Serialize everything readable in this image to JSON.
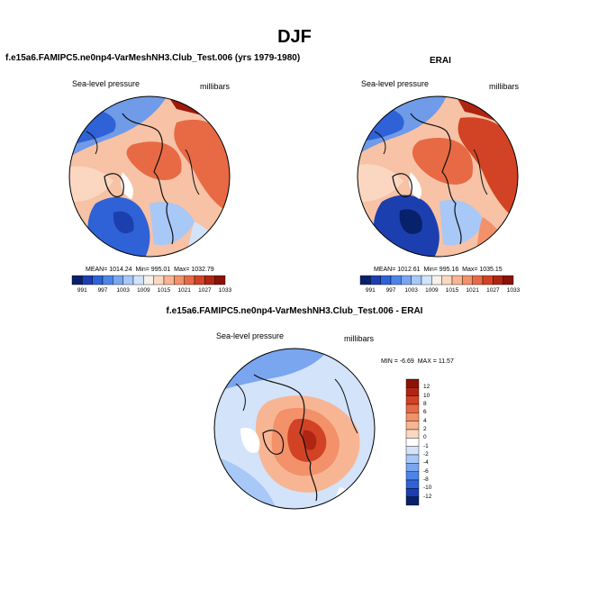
{
  "page": {
    "title": "DJF"
  },
  "panels": [
    {
      "title": "f.e15a6.FAMIPC5.ne0np4-VarMeshNH3.Club_Test.006 (yrs 1979-1980)",
      "left_label": "Sea-level pressure",
      "right_label": "millibars",
      "stats": {
        "mean_label": "MEAN=",
        "mean": "1014.24",
        "min_label": "Min=",
        "min": "995.01",
        "max_label": "Max=",
        "max": "1032.79"
      },
      "colorbar": {
        "labels": [
          "991",
          "997",
          "1003",
          "1009",
          "1015",
          "1021",
          "1027",
          "1033"
        ],
        "colors": [
          "#08216b",
          "#1c3fb0",
          "#2f62d6",
          "#4d84e8",
          "#7aa6f0",
          "#a8c8f7",
          "#d2e3fa",
          "#f4f1ec",
          "#fbd7c2",
          "#f8b593",
          "#f2916a",
          "#e86a45",
          "#d24325",
          "#b02512",
          "#8a1208"
        ]
      }
    },
    {
      "title": "ERAI",
      "left_label": "Sea-level pressure",
      "right_label": "millibars",
      "stats": {
        "mean_label": "MEAN=",
        "mean": "1012.61",
        "min_label": "Min=",
        "min": "995.16",
        "max_label": "Max=",
        "max": "1035.15"
      },
      "colorbar": {
        "labels": [
          "991",
          "997",
          "1003",
          "1009",
          "1015",
          "1021",
          "1027",
          "1033"
        ],
        "colors": [
          "#08216b",
          "#1c3fb0",
          "#2f62d6",
          "#4d84e8",
          "#7aa6f0",
          "#a8c8f7",
          "#d2e3fa",
          "#f4f1ec",
          "#fbd7c2",
          "#f8b593",
          "#f2916a",
          "#e86a45",
          "#d24325",
          "#b02512",
          "#8a1208"
        ]
      }
    },
    {
      "title": "f.e15a6.FAMIPC5.ne0np4-VarMeshNH3.Club_Test.006 - ERAI",
      "left_label": "Sea-level pressure",
      "right_label": "millibars",
      "stats": {
        "min_label": "MIN =",
        "min": "-6.69",
        "max_label": "MAX =",
        "max": "11.57"
      },
      "colorbar": {
        "labels": [
          "12",
          "10",
          "8",
          "6",
          "4",
          "2",
          "0",
          "-1",
          "-2",
          "-4",
          "-6",
          "-8",
          "-10",
          "-12"
        ],
        "colors": [
          "#8a1208",
          "#b02512",
          "#d24325",
          "#e86a45",
          "#f2916a",
          "#f8b593",
          "#fbd7c2",
          "#ffffff",
          "#d2e3fa",
          "#a8c8f7",
          "#7aa6f0",
          "#4d84e8",
          "#2f62d6",
          "#1c3fb0",
          "#08216b"
        ]
      }
    }
  ]
}
